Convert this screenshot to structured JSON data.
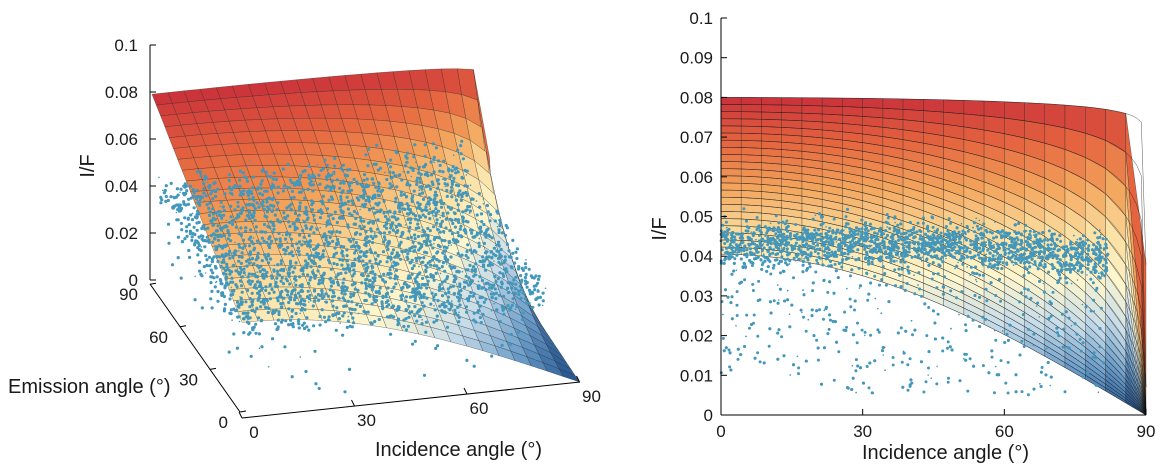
{
  "chart_data": [
    {
      "type": "surface3d",
      "xlabel": "Incidence angle (°)",
      "ylabel": "Emission angle (°)",
      "zlabel": "I/F",
      "xlim": [
        0,
        90
      ],
      "ylim": [
        0,
        90
      ],
      "zlim": [
        0,
        0.1
      ],
      "xticks": [
        "0",
        "30",
        "60",
        "90"
      ],
      "yticks": [
        "0",
        "30",
        "60",
        "90"
      ],
      "zticks": [
        "0",
        "0.02",
        "0.04",
        "0.06",
        "0.08",
        "0.1"
      ],
      "surface": {
        "description_values": "I/F = 0.08 at incidence 0, decreasing to 0 at incidence 90",
        "grid_steps": 21,
        "colormap": [
          "#c9303a",
          "#e5653f",
          "#f3a55c",
          "#fbe0a2",
          "#fdf6cf",
          "#c6dcea",
          "#6a9cc9",
          "#1f4f8c"
        ]
      },
      "scatter": {
        "color": "#4397bb",
        "incidence_range": [
          0,
          82
        ],
        "emission_range": [
          0,
          90
        ],
        "if_range": [
          0.005,
          0.055
        ]
      }
    },
    {
      "type": "line",
      "xlabel": "Incidence angle (°)",
      "ylabel": "I/F",
      "xlim": [
        0,
        90
      ],
      "ylim": [
        0,
        0.1
      ],
      "xticks": [
        "0",
        "30",
        "60",
        "90"
      ],
      "yticks": [
        "0",
        "0.01",
        "0.02",
        "0.03",
        "0.04",
        "0.05",
        "0.06",
        "0.07",
        "0.08",
        "0.09",
        "0.1"
      ],
      "series": [
        {
          "emission": 0,
          "i0": 0.0405,
          "color": "#1f3f73"
        },
        {
          "emission": 90,
          "i0": 0.08,
          "color": "#c9303a"
        }
      ],
      "family_count": 22,
      "scatter": {
        "color": "#4397bb",
        "band": [
          {
            "x": 0,
            "ymin": 0.037,
            "ymax": 0.046
          },
          {
            "x": 30,
            "ymin": 0.038,
            "ymax": 0.048
          },
          {
            "x": 60,
            "ymin": 0.037,
            "ymax": 0.047
          },
          {
            "x": 82,
            "ymin": 0.031,
            "ymax": 0.042
          }
        ],
        "sparse_ymin": 0.005,
        "x_range": [
          0,
          82
        ]
      }
    }
  ]
}
